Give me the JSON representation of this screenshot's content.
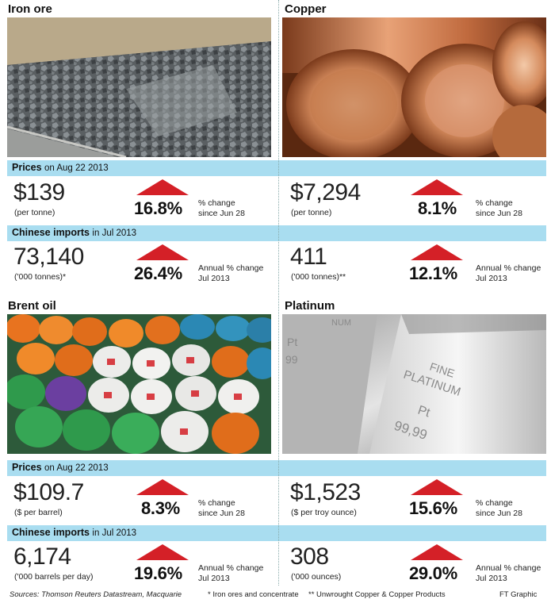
{
  "iron": {
    "title": "Iron ore",
    "prices_label": "Prices",
    "prices_date": "on Aug 22 2013",
    "price": "$139",
    "price_unit": "(per tonne)",
    "price_change": "16.8%",
    "price_change_l1": "% change",
    "price_change_l2": "since Jun 28",
    "imports_label": "Chinese imports",
    "imports_date": "in Jul 2013",
    "imports": "73,140",
    "imports_unit": "('000 tonnes)*",
    "imports_change": "26.4%",
    "imports_change_l1": "Annual % change",
    "imports_change_l2": "Jul 2013"
  },
  "copper": {
    "title": "Copper",
    "price": "$7,294",
    "price_unit": "(per tonne)",
    "price_change": "8.1%",
    "price_change_l1": "% change",
    "price_change_l2": "since Jun 28",
    "imports": "411",
    "imports_unit": "('000 tonnes)**",
    "imports_change": "12.1%",
    "imports_change_l1": "Annual % change",
    "imports_change_l2": "Jul 2013"
  },
  "brent": {
    "title": "Brent oil",
    "prices_label": "Prices",
    "prices_date": "on Aug 22 2013",
    "price": "$109.7",
    "price_unit": "($ per barrel)",
    "price_change": "8.3%",
    "price_change_l1": "% change",
    "price_change_l2": "since Jun 28",
    "imports_label": "Chinese imports",
    "imports_date": "in Jul 2013",
    "imports": "6,174",
    "imports_unit": "('000 barrels per day)",
    "imports_change": "19.6%",
    "imports_change_l1": "Annual % change",
    "imports_change_l2": "Jul 2013"
  },
  "platinum": {
    "title": "Platinum",
    "price": "$1,523",
    "price_unit": "($ per troy ounce)",
    "price_change": "15.6%",
    "price_change_l1": "% change",
    "price_change_l2": "since Jun 28",
    "imports": "308",
    "imports_unit": "('000 ounces)",
    "imports_change": "29.0%",
    "imports_change_l1": "Annual % change",
    "imports_change_l2": "Jul 2013",
    "bar_text_1": "FINE",
    "bar_text_2": "PLATINUM",
    "bar_text_3": "Pt",
    "bar_text_4": "99,99",
    "bar_text_5": "Pt",
    "bar_text_6": "99",
    "bar_text_7": "NUM"
  },
  "footer": {
    "sources": "Sources: Thomson Reuters Datastream, Macquarie",
    "note1": "* Iron ores and concentrate",
    "note2": "** Unwrought Copper & Copper Products",
    "credit": "FT Graphic"
  },
  "colors": {
    "band": "#a9ddf0",
    "arrow": "#d42027"
  }
}
